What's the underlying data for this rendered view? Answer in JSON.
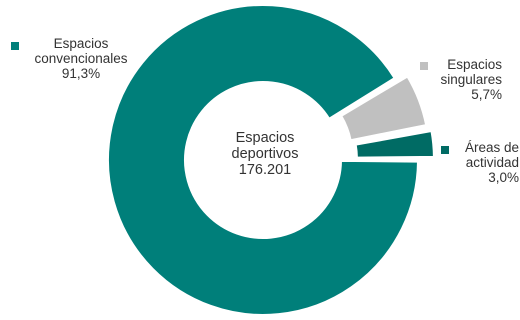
{
  "chart_data": {
    "type": "pie",
    "style": "donut",
    "center_label": [
      "Espacios",
      "deportivos",
      "176.201"
    ],
    "total": 176201,
    "slices": [
      {
        "label_lines": [
          "Espacios",
          "convencionales"
        ],
        "pct_label": "91,3%",
        "value": 91.3,
        "color": "#007f7a"
      },
      {
        "label_lines": [
          "Espacios",
          "singulares"
        ],
        "pct_label": "5,7%",
        "value": 5.7,
        "color": "#c0c0c0"
      },
      {
        "label_lines": [
          "Áreas de",
          "actividad"
        ],
        "pct_label": "3,0%",
        "value": 3.0,
        "color": "#006b64"
      }
    ],
    "legend_placement": "around"
  }
}
